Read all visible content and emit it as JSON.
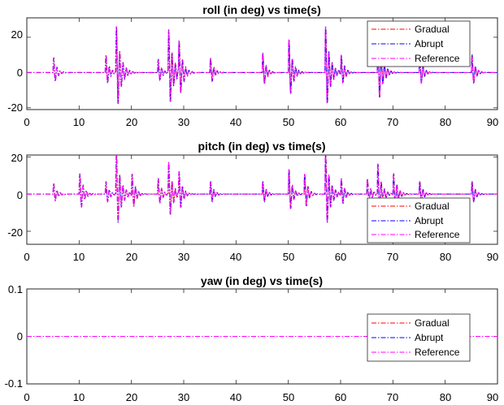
{
  "chart_data": [
    {
      "type": "line",
      "title": "roll (in deg) vs time(s)",
      "xlim": [
        0,
        90
      ],
      "ylim": [
        -21,
        31
      ],
      "xticks": [
        "0",
        "10",
        "20",
        "30",
        "40",
        "50",
        "60",
        "70",
        "80",
        "90"
      ],
      "yticks": [
        "-20",
        "0",
        "20"
      ],
      "yticks_values": [
        -20,
        0,
        20
      ],
      "legend": {
        "placement": "top-right"
      },
      "series": [
        {
          "name": "Gradual",
          "color": "#ff0000"
        },
        {
          "name": "Abrupt",
          "color": "#0000ff"
        },
        {
          "name": "Reference",
          "color": "#ff00ff"
        }
      ],
      "bursts": [
        [
          5,
          10,
          0.6
        ],
        [
          15,
          12,
          0.6
        ],
        [
          17,
          30,
          0.8
        ],
        [
          25,
          9,
          0.6
        ],
        [
          27,
          28,
          0.8
        ],
        [
          29,
          20,
          0.7
        ],
        [
          35,
          10,
          0.6
        ],
        [
          45,
          13,
          0.6
        ],
        [
          50,
          22,
          0.7
        ],
        [
          57,
          30,
          0.8
        ],
        [
          60,
          12,
          0.6
        ],
        [
          67,
          24,
          0.8
        ],
        [
          75,
          12,
          0.6
        ],
        [
          85,
          12,
          0.6
        ]
      ]
    },
    {
      "type": "line",
      "title": "pitch (in deg) vs time(s)",
      "xlim": [
        0,
        90
      ],
      "ylim": [
        -27,
        21
      ],
      "xticks": [
        "0",
        "10",
        "20",
        "30",
        "40",
        "50",
        "60",
        "70",
        "80",
        "90"
      ],
      "yticks": [
        "-20",
        "0",
        "20"
      ],
      "yticks_values": [
        -20,
        0,
        20
      ],
      "legend": {
        "placement": "bottom-right"
      },
      "series": [
        {
          "name": "Gradual",
          "color": "#ff0000"
        },
        {
          "name": "Abrupt",
          "color": "#0000ff"
        },
        {
          "name": "Reference",
          "color": "#ff00ff"
        }
      ],
      "bursts": [
        [
          5,
          7,
          0.6
        ],
        [
          10,
          13,
          0.7
        ],
        [
          15,
          8,
          0.6
        ],
        [
          17,
          26,
          0.8
        ],
        [
          20,
          13,
          0.6
        ],
        [
          25,
          10,
          0.6
        ],
        [
          27,
          20,
          0.7
        ],
        [
          29,
          14,
          0.6
        ],
        [
          35,
          8,
          0.6
        ],
        [
          45,
          8,
          0.6
        ],
        [
          50,
          16,
          0.6
        ],
        [
          53,
          13,
          0.6
        ],
        [
          57,
          26,
          0.8
        ],
        [
          60,
          10,
          0.6
        ],
        [
          65,
          10,
          0.6
        ],
        [
          67,
          19,
          0.7
        ],
        [
          70,
          13,
          0.7
        ],
        [
          75,
          8,
          0.6
        ],
        [
          85,
          8,
          0.6
        ]
      ]
    },
    {
      "type": "line",
      "title": "yaw (in deg) vs time(s)",
      "xlim": [
        0,
        90
      ],
      "ylim": [
        -0.1,
        0.1
      ],
      "xticks": [
        "0",
        "10",
        "20",
        "30",
        "40",
        "50",
        "60",
        "70",
        "80",
        "90"
      ],
      "yticks": [
        "-0.1",
        "0",
        "0.1"
      ],
      "yticks_values": [
        -0.1,
        0,
        0.1
      ],
      "legend": {
        "placement": "middle-right"
      },
      "series": [
        {
          "name": "Gradual",
          "color": "#ff0000"
        },
        {
          "name": "Abrupt",
          "color": "#0000ff"
        },
        {
          "name": "Reference",
          "color": "#ff00ff"
        }
      ],
      "bursts": []
    }
  ]
}
